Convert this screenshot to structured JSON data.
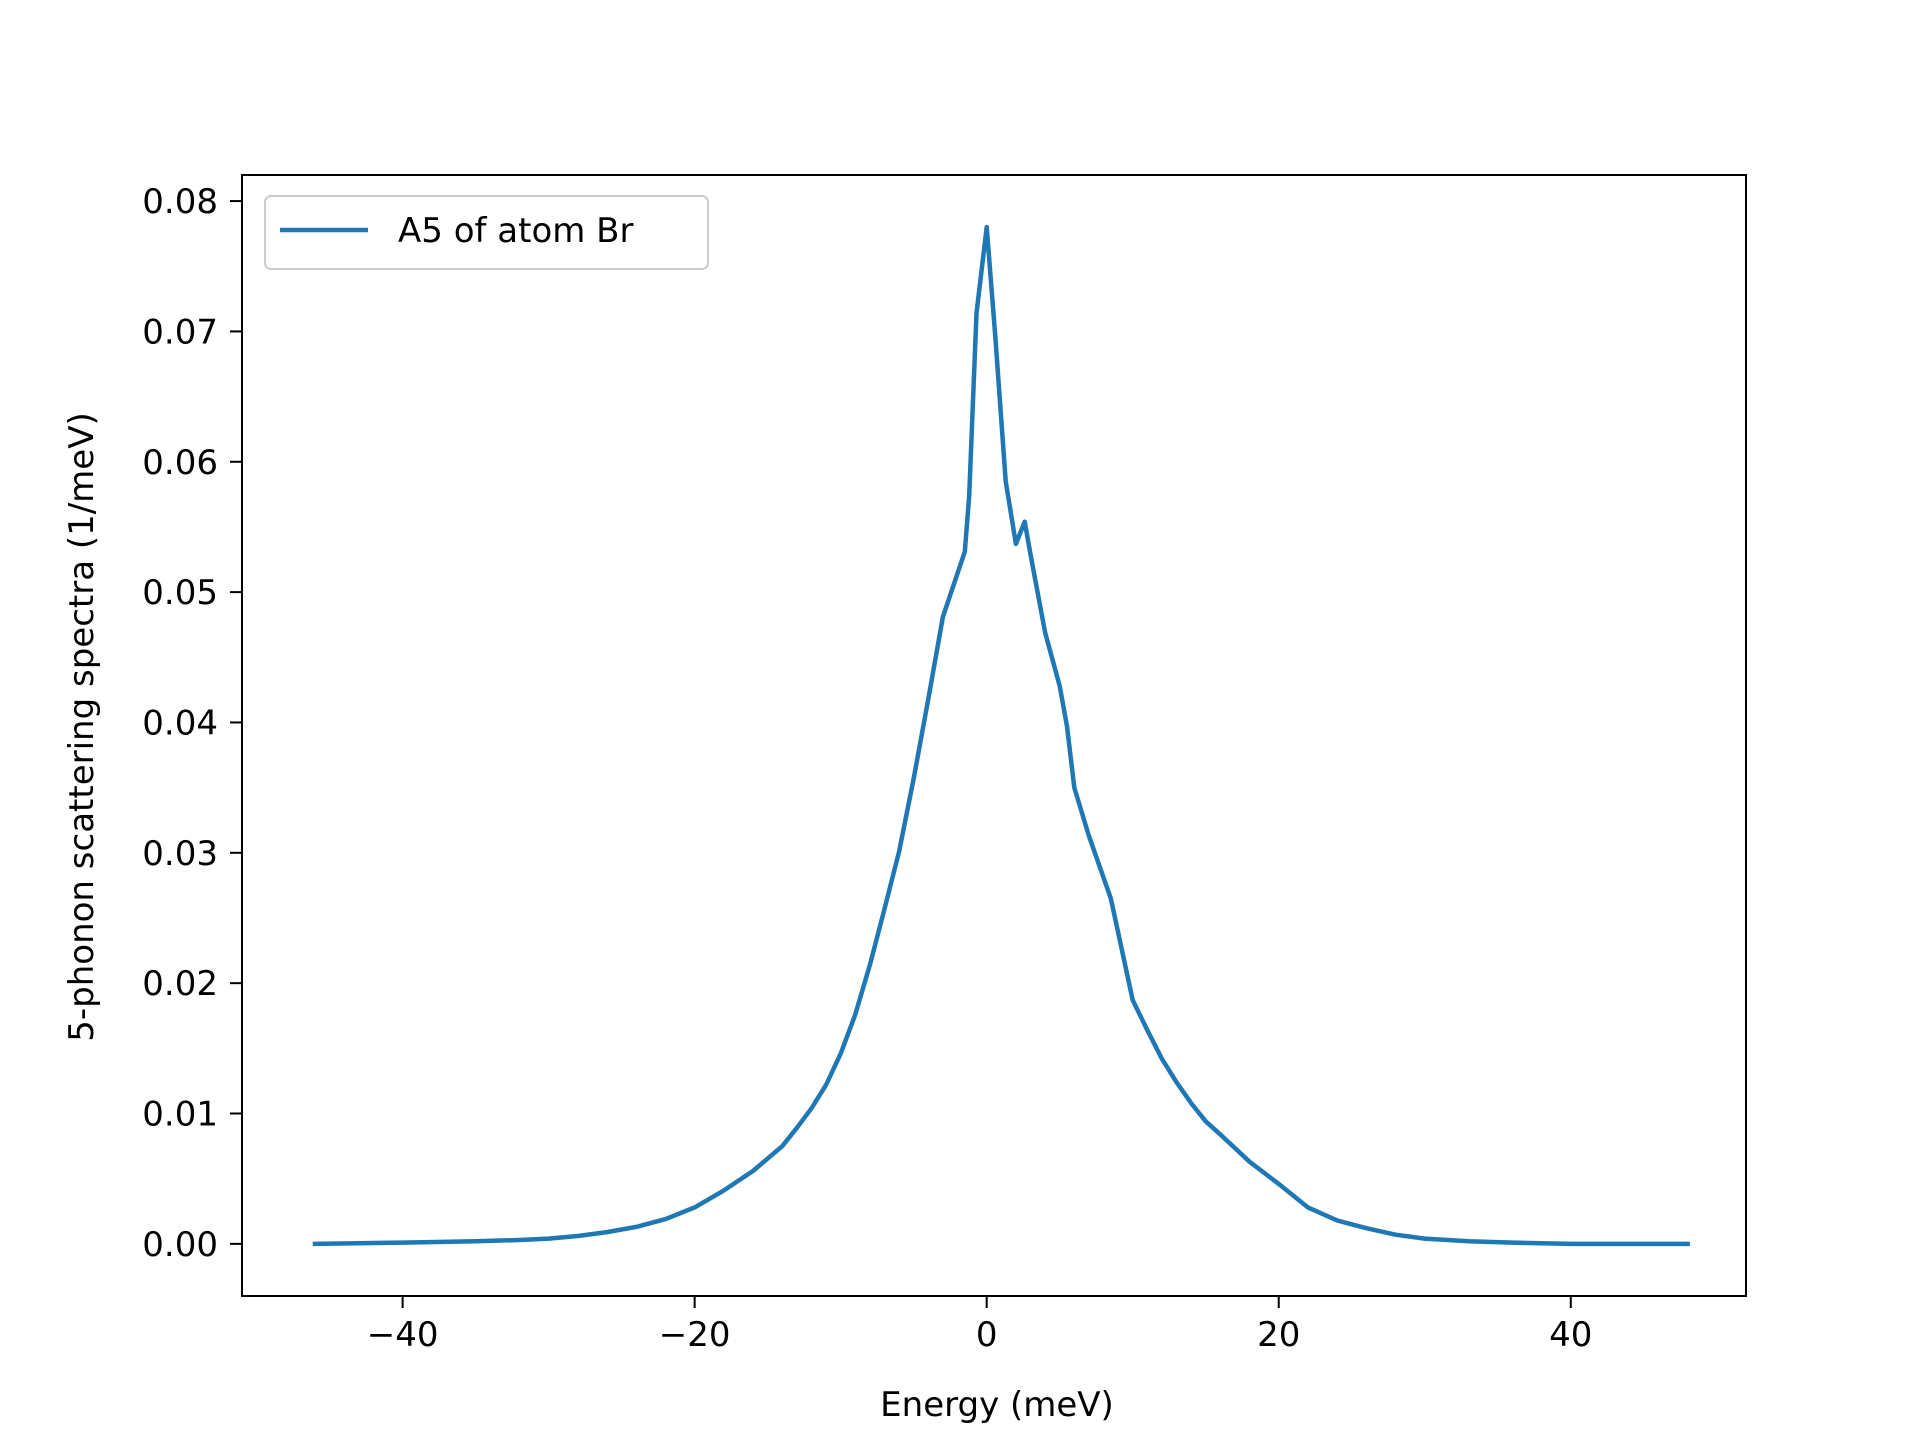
{
  "chart_data": {
    "type": "line",
    "title": "",
    "xlabel": "Energy (meV)",
    "ylabel": "5-phonon scattering spectra (1/meV)",
    "xlim": [
      -51,
      52
    ],
    "ylim": [
      -0.004,
      0.082
    ],
    "xticks": [
      -40,
      -20,
      0,
      20,
      40
    ],
    "xtick_labels": [
      "−40",
      "−20",
      "0",
      "20",
      "40"
    ],
    "yticks": [
      0.0,
      0.01,
      0.02,
      0.03,
      0.04,
      0.05,
      0.06,
      0.07,
      0.08
    ],
    "ytick_labels": [
      "0.00",
      "0.01",
      "0.02",
      "0.03",
      "0.04",
      "0.05",
      "0.06",
      "0.07",
      "0.08"
    ],
    "grid": false,
    "legend_position": "top-left",
    "series": [
      {
        "name": "A5 of atom Br",
        "color": "#1f77b4",
        "x": [
          -46,
          -40,
          -35,
          -32,
          -30,
          -28,
          -26,
          -24,
          -22,
          -20,
          -18,
          -16,
          -14,
          -13,
          -12,
          -11,
          -10,
          -9,
          -8,
          -7,
          -6,
          -5,
          -4,
          -3,
          -1.5,
          -1.2,
          -0.7,
          0,
          0.6,
          1.3,
          2,
          2.6,
          3,
          4,
          5,
          5.5,
          6,
          7,
          8.5,
          10,
          11,
          12,
          13,
          14,
          15,
          16,
          18,
          20,
          22,
          24,
          26,
          28,
          30,
          33,
          36,
          40,
          44,
          48
        ],
        "y": [
          0.0,
          0.0001,
          0.0002,
          0.0003,
          0.0004,
          0.0006,
          0.0009,
          0.0013,
          0.0019,
          0.0028,
          0.0041,
          0.0056,
          0.0075,
          0.0089,
          0.0104,
          0.0122,
          0.0146,
          0.0176,
          0.0214,
          0.0257,
          0.0301,
          0.0357,
          0.0418,
          0.0481,
          0.0531,
          0.0574,
          0.0714,
          0.078,
          0.0694,
          0.0585,
          0.0537,
          0.0554,
          0.0529,
          0.0469,
          0.0428,
          0.0397,
          0.035,
          0.0313,
          0.0265,
          0.0187,
          0.0164,
          0.0142,
          0.0124,
          0.0108,
          0.0094,
          0.0084,
          0.0063,
          0.0046,
          0.0028,
          0.0018,
          0.0012,
          0.0007,
          0.0004,
          0.0002,
          0.0001,
          0.0,
          0.0,
          0.0
        ]
      }
    ]
  }
}
